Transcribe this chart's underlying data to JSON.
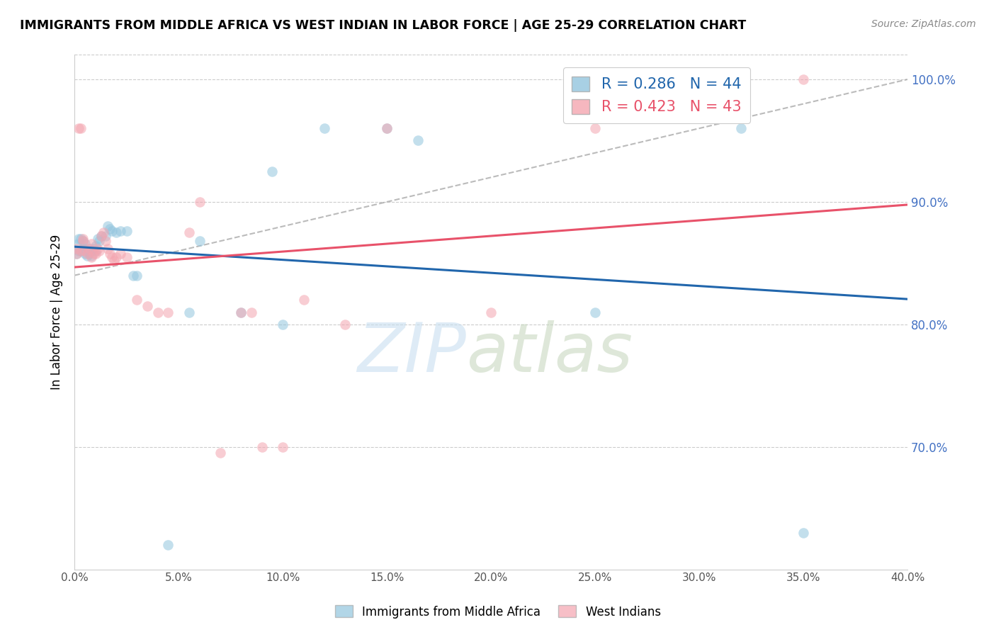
{
  "title": "IMMIGRANTS FROM MIDDLE AFRICA VS WEST INDIAN IN LABOR FORCE | AGE 25-29 CORRELATION CHART",
  "source": "Source: ZipAtlas.com",
  "ylabel": "In Labor Force | Age 25-29",
  "xlim": [
    0.0,
    0.4
  ],
  "ylim": [
    0.6,
    1.02
  ],
  "xticks": [
    0.0,
    0.05,
    0.1,
    0.15,
    0.2,
    0.25,
    0.3,
    0.35,
    0.4
  ],
  "yticks": [
    0.7,
    0.8,
    0.9,
    1.0
  ],
  "ytick_labels": [
    "70.0%",
    "80.0%",
    "90.0%",
    "100.0%"
  ],
  "xtick_labels": [
    "0.0%",
    "5.0%",
    "10.0%",
    "15.0%",
    "20.0%",
    "25.0%",
    "30.0%",
    "35.0%",
    "40.0%"
  ],
  "blue_R": 0.286,
  "blue_N": 44,
  "pink_R": 0.423,
  "pink_N": 43,
  "blue_color": "#92c5de",
  "pink_color": "#f4a5b0",
  "blue_line_color": "#2166ac",
  "pink_line_color": "#e8526a",
  "legend_label_blue": "Immigrants from Middle Africa",
  "legend_label_pink": "West Indians",
  "blue_x": [
    0.001,
    0.001,
    0.002,
    0.002,
    0.003,
    0.003,
    0.004,
    0.004,
    0.005,
    0.005,
    0.005,
    0.006,
    0.006,
    0.007,
    0.007,
    0.008,
    0.008,
    0.009,
    0.01,
    0.01,
    0.011,
    0.012,
    0.013,
    0.015,
    0.016,
    0.017,
    0.018,
    0.02,
    0.022,
    0.025,
    0.028,
    0.03,
    0.045,
    0.055,
    0.06,
    0.08,
    0.095,
    0.1,
    0.12,
    0.15,
    0.165,
    0.25,
    0.32,
    0.35
  ],
  "blue_y": [
    0.858,
    0.865,
    0.86,
    0.87,
    0.86,
    0.87,
    0.862,
    0.868,
    0.858,
    0.862,
    0.866,
    0.856,
    0.86,
    0.858,
    0.862,
    0.856,
    0.86,
    0.862,
    0.86,
    0.864,
    0.87,
    0.868,
    0.872,
    0.872,
    0.88,
    0.878,
    0.876,
    0.875,
    0.876,
    0.876,
    0.84,
    0.84,
    0.62,
    0.81,
    0.868,
    0.81,
    0.925,
    0.8,
    0.96,
    0.96,
    0.95,
    0.81,
    0.96,
    0.63
  ],
  "pink_x": [
    0.001,
    0.001,
    0.002,
    0.003,
    0.003,
    0.004,
    0.004,
    0.005,
    0.006,
    0.007,
    0.008,
    0.008,
    0.009,
    0.01,
    0.011,
    0.012,
    0.013,
    0.014,
    0.015,
    0.016,
    0.017,
    0.018,
    0.019,
    0.02,
    0.022,
    0.025,
    0.03,
    0.035,
    0.04,
    0.045,
    0.055,
    0.06,
    0.07,
    0.08,
    0.085,
    0.09,
    0.1,
    0.11,
    0.13,
    0.15,
    0.2,
    0.25,
    0.35
  ],
  "pink_y": [
    0.858,
    0.862,
    0.96,
    0.96,
    0.86,
    0.87,
    0.868,
    0.86,
    0.858,
    0.862,
    0.855,
    0.866,
    0.858,
    0.858,
    0.862,
    0.86,
    0.872,
    0.875,
    0.868,
    0.862,
    0.858,
    0.855,
    0.852,
    0.855,
    0.858,
    0.855,
    0.82,
    0.815,
    0.81,
    0.81,
    0.875,
    0.9,
    0.695,
    0.81,
    0.81,
    0.7,
    0.7,
    0.82,
    0.8,
    0.96,
    0.81,
    0.96,
    1.0
  ],
  "ref_line_x": [
    0.0,
    0.4
  ],
  "ref_line_y": [
    0.84,
    1.0
  ]
}
